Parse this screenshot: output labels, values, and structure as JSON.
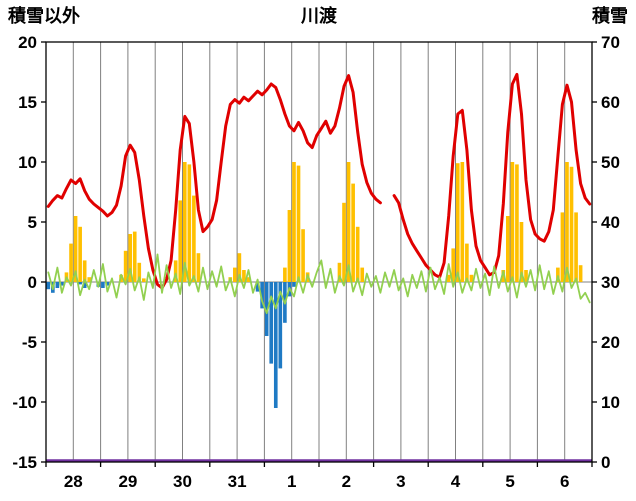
{
  "chart": {
    "title": "川渡",
    "left_axis_title": "積雪以外",
    "right_axis_title": "積雪",
    "colors": {
      "temperature": "#e00000",
      "solar": "#ffc000",
      "precip": "#1f7ac4",
      "green": "#92d050",
      "snow": "#7030a0",
      "grid": "#808080",
      "axis": "#000000",
      "text": "#000000",
      "background": "#ffffff"
    }
  },
  "chart_data": {
    "type": "line",
    "title": "川渡",
    "x_tick_labels": [
      "28",
      "29",
      "30",
      "31",
      "1",
      "2",
      "3",
      "4",
      "5",
      "6"
    ],
    "points_per_day": 12,
    "left_axis": {
      "title": "積雪以外",
      "min": -15,
      "max": 20,
      "ticks": [
        20,
        15,
        10,
        5,
        0,
        -5,
        -10,
        -15
      ]
    },
    "right_axis": {
      "title": "積雪",
      "min": 0,
      "max": 70,
      "ticks": [
        70,
        60,
        50,
        40,
        30,
        20,
        10,
        0
      ]
    },
    "grid": "vertical-every-half-day",
    "legend": "none",
    "series": [
      {
        "name": "red-line",
        "type": "line",
        "axis": "left",
        "color_key": "temperature",
        "values": [
          6.3,
          6.8,
          7.2,
          7.0,
          7.8,
          8.5,
          8.2,
          8.6,
          7.6,
          6.9,
          6.5,
          6.2,
          5.9,
          5.5,
          5.8,
          6.4,
          8.0,
          10.5,
          11.4,
          10.8,
          8.5,
          5.5,
          2.8,
          1.0,
          -0.2,
          -0.5,
          0.2,
          1.8,
          6.0,
          11.0,
          13.8,
          13.2,
          10.0,
          6.0,
          4.2,
          4.6,
          5.2,
          6.8,
          10.0,
          13.0,
          14.8,
          15.2,
          14.9,
          15.4,
          15.1,
          15.5,
          15.9,
          15.6,
          16.0,
          16.5,
          16.2,
          15.2,
          14.0,
          13.0,
          12.6,
          13.3,
          12.6,
          11.6,
          11.2,
          12.2,
          12.8,
          13.4,
          12.4,
          13.0,
          14.5,
          16.3,
          17.2,
          15.8,
          12.5,
          9.8,
          8.3,
          7.4,
          6.9,
          6.6,
          null,
          null,
          7.2,
          6.6,
          5.2,
          4.0,
          3.2,
          2.6,
          2.0,
          1.4,
          1.0,
          0.6,
          0.4,
          1.6,
          5.5,
          10.5,
          14.0,
          14.3,
          11.0,
          6.0,
          3.0,
          1.8,
          1.2,
          0.6,
          0.8,
          2.2,
          6.5,
          12.5,
          16.5,
          17.3,
          14.0,
          8.5,
          5.2,
          4.0,
          3.6,
          3.4,
          4.2,
          6.0,
          10.5,
          14.8,
          16.4,
          15.0,
          11.0,
          8.2,
          7.0,
          6.5
        ]
      },
      {
        "name": "orange-bars",
        "type": "bar",
        "axis": "left",
        "color_key": "solar",
        "values": [
          0,
          0,
          0,
          0,
          0.8,
          3.2,
          5.5,
          4.6,
          1.8,
          0.4,
          0,
          0,
          0,
          0,
          0,
          0,
          0.6,
          2.6,
          4.0,
          4.2,
          1.6,
          0.3,
          0,
          0,
          0,
          0,
          0,
          0,
          1.8,
          6.8,
          10,
          9.8,
          7.2,
          2.4,
          0,
          0,
          0,
          0,
          0,
          0,
          0.4,
          1.2,
          2.4,
          1.0,
          0.4,
          0,
          0,
          0,
          0,
          0,
          0,
          0,
          1.2,
          6.0,
          10,
          9.7,
          4.4,
          0.8,
          0,
          0,
          0,
          0,
          0,
          0,
          1.6,
          6.6,
          10,
          8.2,
          4.6,
          1.2,
          0,
          0,
          0,
          0,
          0,
          0,
          0,
          0,
          0,
          0,
          0,
          0,
          0,
          0,
          0,
          0,
          0,
          0,
          0.6,
          2.8,
          9.9,
          10,
          3.2,
          0.6,
          0,
          0,
          0,
          0,
          0,
          0,
          1.0,
          5.5,
          10,
          9.8,
          5.0,
          1.0,
          0,
          0,
          0,
          0,
          0,
          0,
          1.2,
          5.8,
          10,
          9.6,
          5.8,
          1.4,
          0,
          0
        ]
      },
      {
        "name": "blue-bars",
        "type": "bar",
        "axis": "left",
        "color_key": "precip",
        "values": [
          -0.6,
          -0.9,
          -0.5,
          -0.3,
          0,
          0,
          0,
          -0.2,
          -0.5,
          0,
          0,
          -0.4,
          -0.5,
          -0.3,
          0,
          0,
          0,
          0,
          0,
          0,
          0,
          0,
          0,
          0,
          0,
          0,
          0,
          0,
          0,
          0,
          0,
          0,
          0,
          0,
          0,
          0,
          0,
          0,
          0,
          0,
          0,
          0,
          0,
          0,
          0,
          0,
          -0.8,
          -2.2,
          -4.5,
          -6.8,
          -10.5,
          -7.2,
          -3.4,
          -1.2,
          -0.4,
          0,
          0,
          0,
          0,
          0,
          0,
          0,
          0,
          0,
          0,
          0,
          0,
          0,
          0,
          0,
          0,
          0,
          0,
          0,
          0,
          0,
          0,
          0,
          0,
          0,
          0,
          0,
          0,
          0,
          0,
          0,
          0,
          0,
          0,
          0,
          0,
          0,
          0,
          0,
          0,
          0,
          0,
          0,
          0,
          0,
          0,
          0,
          0,
          0,
          0,
          0,
          0,
          0,
          0,
          0,
          0,
          0,
          0,
          0,
          0,
          0,
          0,
          0,
          0,
          0
        ]
      },
      {
        "name": "green-line",
        "type": "line",
        "axis": "left",
        "color_key": "green",
        "values": [
          0.8,
          -0.6,
          1.2,
          -0.9,
          0.4,
          -0.3,
          0.9,
          -1.1,
          0.2,
          -0.6,
          1.0,
          -0.4,
          1.5,
          -0.8,
          0.3,
          -1.3,
          0.6,
          -0.2,
          1.1,
          -0.7,
          0.4,
          -1.5,
          0.8,
          -0.5,
          2.3,
          -0.9,
          1.4,
          -0.5,
          0.7,
          -1.0,
          1.6,
          -0.3,
          0.5,
          -0.8,
          1.2,
          -0.6,
          0.9,
          -0.4,
          1.3,
          -0.7,
          0.3,
          -1.2,
          0.6,
          -0.5,
          1.0,
          -0.9,
          0.2,
          -1.6,
          -2.6,
          -1.2,
          -2.2,
          -0.8,
          -1.8,
          -0.5,
          -1.2,
          0.4,
          -0.9,
          0.6,
          -0.4,
          0.8,
          1.8,
          -0.5,
          1.1,
          -0.9,
          0.5,
          -0.3,
          1.4,
          -0.8,
          0.3,
          -1.1,
          0.7,
          -0.4,
          0.5,
          -0.9,
          0.8,
          -0.4,
          1.0,
          -0.7,
          0.3,
          -1.2,
          0.6,
          -0.5,
          0.9,
          -0.8,
          1.2,
          -0.6,
          0.4,
          -1.0,
          1.5,
          -0.4,
          0.8,
          -0.9,
          0.3,
          -0.7,
          1.1,
          -0.5,
          0.7,
          -1.1,
          1.3,
          -0.5,
          0.9,
          -0.8,
          0.4,
          -1.3,
          0.8,
          -0.4,
          1.0,
          -0.7,
          1.4,
          -0.6,
          0.9,
          -1.0,
          0.5,
          -0.8,
          1.2,
          -0.5,
          0.3,
          -1.4,
          -0.9,
          -1.7
        ]
      },
      {
        "name": "purple-line-snow-depth",
        "type": "line",
        "axis": "right",
        "color_key": "snow",
        "constant": 0
      }
    ]
  }
}
